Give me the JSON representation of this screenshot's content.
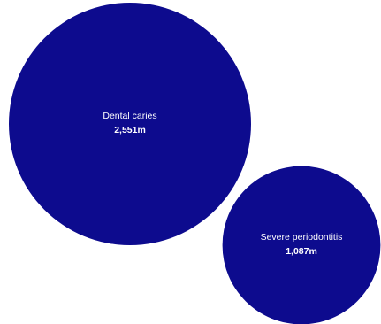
{
  "chart_data": {
    "type": "bubble",
    "items": [
      {
        "label": "Dental caries",
        "value": 2551,
        "value_label": "2,551m"
      },
      {
        "label": "Severe periodontitis",
        "value": 1087,
        "value_label": "1,087m"
      }
    ],
    "unit": "m",
    "color": "#0d0b8e",
    "label_color": "#ffffff"
  }
}
